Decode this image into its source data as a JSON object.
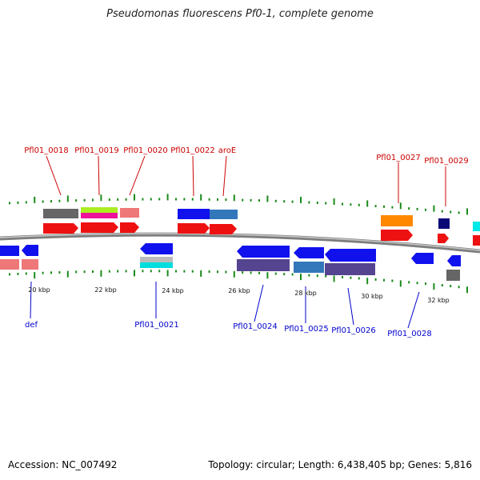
{
  "title": "Pseudomonas fluorescens Pf0-1, complete genome",
  "footer": {
    "accession": "Accession: NC_007492",
    "summary": "Topology: circular; Length: 6,438,405 bp; Genes: 5,816"
  },
  "colors": {
    "backbone": "#8a8a8a",
    "label_top": "#cc0000",
    "label_bottom": "#0000cc",
    "tick": "#1a8a1a"
  },
  "scale_labels": [
    "20 kbp",
    "22 kbp",
    "24 kbp",
    "26 kbp",
    "28 kbp",
    "30 kbp",
    "32 kbp"
  ],
  "top_labels": [
    "Pfl01_0018",
    "Pfl01_0019",
    "Pfl01_0020",
    "Pfl01_0022",
    "aroE",
    "Pfl01_0027",
    "Pfl01_0029"
  ],
  "bottom_labels": [
    "def",
    "Pfl01_0021",
    "Pfl01_0024",
    "Pfl01_0025",
    "Pfl01_0026",
    "Pfl01_0028"
  ]
}
